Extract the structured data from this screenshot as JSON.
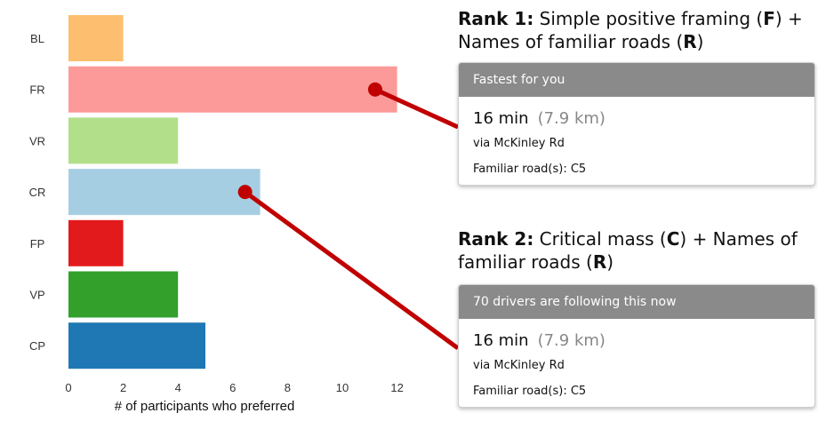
{
  "chart_data": {
    "type": "bar",
    "orientation": "horizontal",
    "categories": [
      "BL",
      "FR",
      "VR",
      "CR",
      "FP",
      "VP",
      "CP"
    ],
    "values": [
      2,
      12,
      4,
      7,
      2,
      4,
      5
    ],
    "colors": [
      "#fdbf6f",
      "#fb9a99",
      "#b2df8a",
      "#a6cee3",
      "#e31a1c",
      "#33a02c",
      "#1f78b4"
    ],
    "xlabel": "# of participants who preferred",
    "ylabel": "",
    "xlim": [
      0,
      13.2
    ],
    "xticks": [
      0,
      2,
      4,
      6,
      8,
      10,
      12
    ],
    "grid": false
  },
  "callouts": [
    {
      "rank_label": "Rank 1:",
      "title_text": " Simple positive framing (",
      "code1": "F",
      "mid_text": ") +",
      "line2_text": "Names of familiar roads (",
      "code2": "R",
      "end_text": ")",
      "bar": "FR",
      "marker_value": 11.2,
      "card": {
        "header": "Fastest for you",
        "time": "16 min",
        "distance": "(7.9 km)",
        "via": "via McKinley Rd",
        "familiar": "Familiar road(s): C5"
      }
    },
    {
      "rank_label": "Rank 2:",
      "title_text": " Critical mass (",
      "code1": "C",
      "mid_text": ") + Names of",
      "line2_text": "familiar roads (",
      "code2": "R",
      "end_text": ")",
      "bar": "CR",
      "marker_value": 6.45,
      "card": {
        "header": "70 drivers are following this now",
        "time": "16 min",
        "distance": "(7.9 km)",
        "via": "via McKinley Rd",
        "familiar": "Familiar road(s): C5"
      }
    }
  ],
  "connector_color": "#c00000"
}
